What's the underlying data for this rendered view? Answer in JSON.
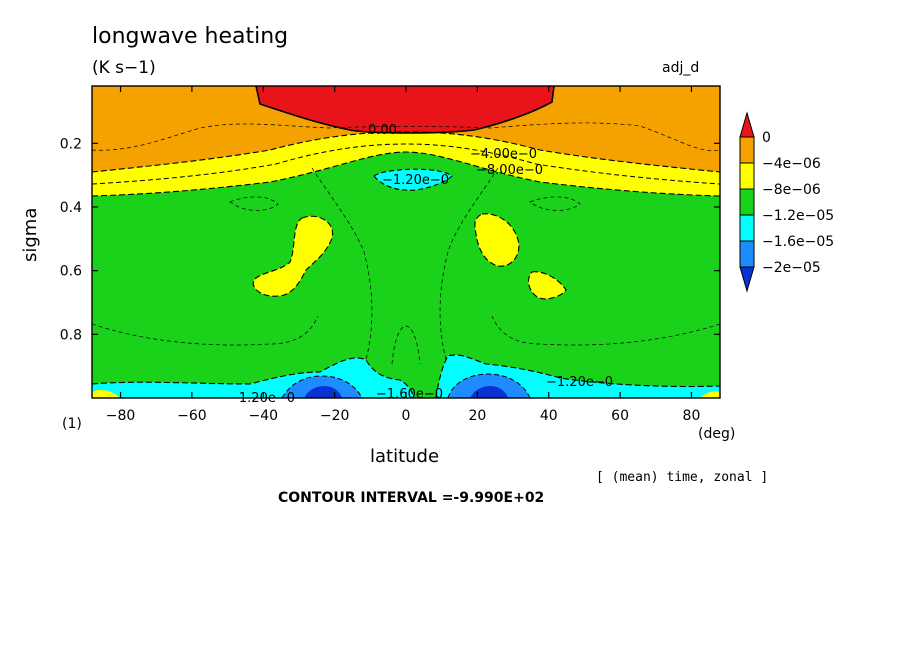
{
  "figure": {
    "title": "longwave heating",
    "units": "(K s−1)",
    "experiment": "adj_d",
    "panel_index": "(1)",
    "x_unit": "(deg)",
    "averaging_note": "[ (mean) time, zonal ]",
    "contour_interval": "CONTOUR INTERVAL =-9.990E+02"
  },
  "chart_data": {
    "type": "heatmap",
    "title": "longwave heating",
    "xlabel": "latitude",
    "ylabel": "sigma",
    "xlim": [
      -88,
      88
    ],
    "ylim": [
      1.0,
      0.02
    ],
    "x_ticks": [
      -80,
      -60,
      -40,
      -20,
      0,
      20,
      40,
      60,
      80
    ],
    "x_tick_labels": [
      "−80",
      "−60",
      "−40",
      "−20",
      "0",
      "20",
      "40",
      "60",
      "80"
    ],
    "y_ticks": [
      0.2,
      0.4,
      0.6,
      0.8
    ],
    "y_tick_labels": [
      "0.2",
      "0.4",
      "0.6",
      "0.8"
    ],
    "colorbar": {
      "levels": [
        0,
        -4e-06,
        -8e-06,
        -1.2e-05,
        -1.6e-05,
        -2e-05
      ],
      "labels": [
        "0",
        "−4e−06",
        "−8e−06",
        "−1.2e−05",
        "−1.6e−05",
        "−2e−05"
      ],
      "colors": [
        "#e8141a",
        "#f5a200",
        "#ffff00",
        "#19d219",
        "#00ffff",
        "#1e8cff",
        "#0a32d2"
      ]
    },
    "contour_labels": [
      "0.00",
      "−4.00e−0",
      "−8.00e−0",
      "−1.20e−0",
      "−1.20e−0",
      "−1.60e−0",
      "−1.20e−0"
    ],
    "grid": false
  }
}
